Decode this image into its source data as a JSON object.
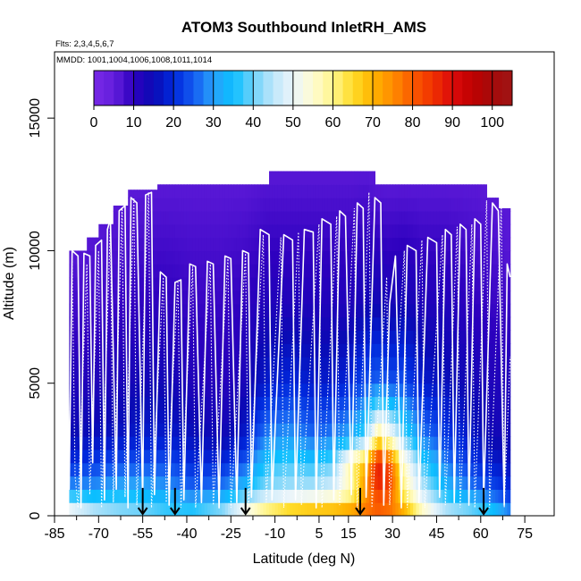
{
  "chart_data": {
    "type": "heatmap",
    "title": "ATOM3 Southbound InletRH_AMS",
    "subtitle_flights": "Flts: 2,3,4,5,6,7",
    "subtitle_dates": "MMDD: 1001,1004,1006,1008,1011,1014",
    "xlabel": "Latitude (deg N)",
    "ylabel": "Altitude (m)",
    "xlim": [
      -85,
      85
    ],
    "ylim": [
      0,
      17500
    ],
    "x_ticks": [
      -85,
      -70,
      -55,
      -40,
      -25,
      -10,
      5,
      15,
      30,
      45,
      60,
      75
    ],
    "x_tick_labels": [
      "-85",
      "-70",
      "-55",
      "-40",
      "-25",
      "-10",
      "5",
      "15",
      "30",
      "45",
      "60",
      "75"
    ],
    "y_ticks": [
      0,
      5000,
      10000,
      15000
    ],
    "y_tick_labels": [
      "0",
      "5000",
      "10000",
      "15000"
    ],
    "colorbar": {
      "range": [
        0,
        105
      ],
      "ticks": [
        0,
        10,
        20,
        30,
        40,
        50,
        60,
        70,
        80,
        90,
        100
      ],
      "tick_labels": [
        "0",
        "10",
        "20",
        "30",
        "40",
        "50",
        "60",
        "70",
        "80",
        "90",
        "100"
      ]
    },
    "arrow_latitudes": [
      -55,
      -44,
      -20,
      19,
      61
    ],
    "cloud_tops": [
      [
        -80,
        10000
      ],
      [
        -74,
        10500
      ],
      [
        -70,
        11000
      ],
      [
        -65,
        11700
      ],
      [
        -60,
        12300
      ],
      [
        -55,
        12300
      ],
      [
        -50,
        12500
      ],
      [
        -30,
        12500
      ],
      [
        -12,
        13000
      ],
      [
        12,
        13000
      ],
      [
        24,
        12500
      ],
      [
        48,
        12500
      ],
      [
        58,
        12500
      ],
      [
        62,
        12000
      ],
      [
        66,
        11600
      ],
      [
        70,
        10000
      ]
    ],
    "rh_profile": [
      {
        "lat": -80,
        "profile": [
          [
            0,
            55
          ],
          [
            500,
            45
          ],
          [
            1000,
            30
          ],
          [
            2000,
            20
          ],
          [
            3000,
            15
          ],
          [
            5000,
            12
          ],
          [
            8000,
            8
          ],
          [
            10000,
            6
          ]
        ]
      },
      {
        "lat": -72,
        "profile": [
          [
            0,
            48
          ],
          [
            500,
            40
          ],
          [
            1000,
            30
          ],
          [
            2000,
            22
          ],
          [
            3000,
            16
          ],
          [
            5000,
            12
          ],
          [
            8000,
            8
          ],
          [
            11000,
            6
          ]
        ]
      },
      {
        "lat": -62,
        "profile": [
          [
            0,
            42
          ],
          [
            500,
            40
          ],
          [
            1000,
            32
          ],
          [
            2000,
            24
          ],
          [
            3000,
            17
          ],
          [
            5000,
            13
          ],
          [
            8000,
            9
          ],
          [
            12000,
            6
          ]
        ]
      },
      {
        "lat": -55,
        "profile": [
          [
            0,
            42
          ],
          [
            500,
            38
          ],
          [
            1000,
            32
          ],
          [
            2000,
            24
          ],
          [
            3000,
            18
          ],
          [
            5000,
            14
          ],
          [
            8000,
            10
          ],
          [
            12300,
            6
          ]
        ]
      },
      {
        "lat": -47,
        "profile": [
          [
            0,
            38
          ],
          [
            500,
            36
          ],
          [
            1000,
            30
          ],
          [
            2000,
            24
          ],
          [
            3000,
            18
          ],
          [
            5000,
            14
          ],
          [
            8000,
            10
          ],
          [
            12500,
            6
          ]
        ]
      },
      {
        "lat": -38,
        "profile": [
          [
            0,
            40
          ],
          [
            500,
            32
          ],
          [
            1000,
            26
          ],
          [
            2000,
            20
          ],
          [
            3000,
            16
          ],
          [
            5000,
            12
          ],
          [
            8000,
            9
          ],
          [
            12500,
            6
          ]
        ]
      },
      {
        "lat": -28,
        "profile": [
          [
            0,
            46
          ],
          [
            500,
            36
          ],
          [
            1000,
            28
          ],
          [
            2000,
            20
          ],
          [
            3000,
            14
          ],
          [
            5000,
            11
          ],
          [
            8000,
            9
          ],
          [
            12500,
            6
          ]
        ]
      },
      {
        "lat": -20,
        "profile": [
          [
            0,
            58
          ],
          [
            500,
            46
          ],
          [
            1000,
            35
          ],
          [
            2000,
            25
          ],
          [
            3000,
            18
          ],
          [
            5000,
            13
          ],
          [
            8000,
            10
          ],
          [
            12500,
            6
          ]
        ]
      },
      {
        "lat": -13,
        "profile": [
          [
            0,
            68
          ],
          [
            500,
            52
          ],
          [
            1000,
            42
          ],
          [
            2000,
            36
          ],
          [
            3000,
            28
          ],
          [
            5000,
            18
          ],
          [
            8000,
            12
          ],
          [
            13000,
            6
          ]
        ]
      },
      {
        "lat": -5,
        "profile": [
          [
            0,
            74
          ],
          [
            500,
            56
          ],
          [
            1000,
            44
          ],
          [
            2000,
            38
          ],
          [
            3000,
            30
          ],
          [
            5000,
            20
          ],
          [
            8000,
            12
          ],
          [
            13000,
            6
          ]
        ]
      },
      {
        "lat": 3,
        "profile": [
          [
            0,
            76
          ],
          [
            500,
            58
          ],
          [
            1000,
            45
          ],
          [
            2000,
            36
          ],
          [
            3000,
            26
          ],
          [
            5000,
            18
          ],
          [
            8000,
            12
          ],
          [
            13000,
            6
          ]
        ]
      },
      {
        "lat": 10,
        "profile": [
          [
            0,
            76
          ],
          [
            500,
            60
          ],
          [
            1000,
            48
          ],
          [
            2000,
            40
          ],
          [
            3000,
            28
          ],
          [
            5000,
            18
          ],
          [
            8000,
            12
          ],
          [
            13000,
            6
          ]
        ]
      },
      {
        "lat": 16,
        "profile": [
          [
            0,
            78
          ],
          [
            500,
            64
          ],
          [
            1000,
            58
          ],
          [
            2000,
            60
          ],
          [
            3000,
            32
          ],
          [
            5000,
            20
          ],
          [
            8000,
            12
          ],
          [
            13000,
            6
          ]
        ]
      },
      {
        "lat": 21,
        "profile": [
          [
            0,
            80
          ],
          [
            500,
            74
          ],
          [
            1000,
            76
          ],
          [
            2000,
            70
          ],
          [
            3000,
            40
          ],
          [
            5000,
            24
          ],
          [
            8000,
            14
          ],
          [
            13000,
            6
          ]
        ]
      },
      {
        "lat": 25,
        "profile": [
          [
            0,
            82
          ],
          [
            500,
            78
          ],
          [
            1000,
            86
          ],
          [
            2000,
            88
          ],
          [
            3000,
            62
          ],
          [
            5000,
            26
          ],
          [
            8000,
            14
          ],
          [
            12500,
            6
          ]
        ]
      },
      {
        "lat": 29,
        "profile": [
          [
            0,
            80
          ],
          [
            500,
            76
          ],
          [
            1000,
            84
          ],
          [
            2000,
            82
          ],
          [
            3000,
            54
          ],
          [
            5000,
            24
          ],
          [
            8000,
            13
          ],
          [
            12500,
            6
          ]
        ]
      },
      {
        "lat": 34,
        "profile": [
          [
            0,
            74
          ],
          [
            500,
            66
          ],
          [
            1000,
            60
          ],
          [
            2000,
            56
          ],
          [
            3000,
            40
          ],
          [
            5000,
            24
          ],
          [
            8000,
            14
          ],
          [
            12500,
            6
          ]
        ]
      },
      {
        "lat": 40,
        "profile": [
          [
            0,
            60
          ],
          [
            500,
            52
          ],
          [
            1000,
            46
          ],
          [
            2000,
            38
          ],
          [
            3000,
            28
          ],
          [
            5000,
            18
          ],
          [
            8000,
            12
          ],
          [
            12500,
            6
          ]
        ]
      },
      {
        "lat": 48,
        "profile": [
          [
            0,
            48
          ],
          [
            500,
            40
          ],
          [
            1000,
            34
          ],
          [
            2000,
            28
          ],
          [
            3000,
            22
          ],
          [
            5000,
            16
          ],
          [
            8000,
            12
          ],
          [
            12500,
            6
          ]
        ]
      },
      {
        "lat": 56,
        "profile": [
          [
            0,
            44
          ],
          [
            500,
            36
          ],
          [
            1000,
            28
          ],
          [
            2000,
            22
          ],
          [
            3000,
            18
          ],
          [
            5000,
            14
          ],
          [
            8000,
            10
          ],
          [
            12500,
            6
          ]
        ]
      },
      {
        "lat": 64,
        "profile": [
          [
            0,
            40
          ],
          [
            500,
            30
          ],
          [
            1000,
            24
          ],
          [
            2000,
            18
          ],
          [
            3000,
            14
          ],
          [
            5000,
            12
          ],
          [
            8000,
            9
          ],
          [
            12000,
            6
          ]
        ]
      },
      {
        "lat": 70,
        "profile": [
          [
            0,
            30
          ],
          [
            500,
            24
          ],
          [
            1000,
            20
          ],
          [
            2000,
            16
          ],
          [
            3000,
            14
          ],
          [
            5000,
            12
          ],
          [
            8000,
            9
          ],
          [
            10000,
            6
          ]
        ]
      }
    ],
    "flight_track_white": [
      [
        -81,
        9800
      ],
      [
        -80,
        1000
      ],
      [
        -79,
        10000
      ],
      [
        -77,
        9800
      ],
      [
        -76,
        300
      ],
      [
        -75,
        9900
      ],
      [
        -73,
        9800
      ],
      [
        -72,
        2000
      ],
      [
        -71,
        10200
      ],
      [
        -69,
        10400
      ],
      [
        -68,
        600
      ],
      [
        -67,
        10800
      ],
      [
        -66,
        11200
      ],
      [
        -64,
        1000
      ],
      [
        -63,
        11500
      ],
      [
        -61,
        11700
      ],
      [
        -60,
        300
      ],
      [
        -59,
        12000
      ],
      [
        -57,
        11800
      ],
      [
        -55,
        600
      ],
      [
        -54,
        12100
      ],
      [
        -52,
        12200
      ],
      [
        -51,
        800
      ],
      [
        -49,
        9200
      ],
      [
        -47,
        9000
      ],
      [
        -46,
        400
      ],
      [
        -44,
        8800
      ],
      [
        -42,
        8900
      ],
      [
        -41,
        600
      ],
      [
        -39,
        9500
      ],
      [
        -37,
        9400
      ],
      [
        -35,
        500
      ],
      [
        -33,
        9600
      ],
      [
        -31,
        9500
      ],
      [
        -29,
        300
      ],
      [
        -27,
        9800
      ],
      [
        -25,
        9700
      ],
      [
        -23,
        500
      ],
      [
        -21,
        10000
      ],
      [
        -19,
        9900
      ],
      [
        -18,
        700
      ],
      [
        -15,
        10800
      ],
      [
        -12,
        10600
      ],
      [
        -11,
        600
      ],
      [
        -7,
        10600
      ],
      [
        -4,
        10400
      ],
      [
        -3,
        600
      ],
      [
        0,
        10800
      ],
      [
        3,
        10700
      ],
      [
        4,
        300
      ],
      [
        6,
        11200
      ],
      [
        9,
        11000
      ],
      [
        10,
        600
      ],
      [
        12,
        11500
      ],
      [
        14,
        11300
      ],
      [
        16,
        800
      ],
      [
        18,
        11800
      ],
      [
        20,
        11600
      ],
      [
        21,
        700
      ],
      [
        24,
        12000
      ],
      [
        26,
        11800
      ],
      [
        27,
        400
      ],
      [
        29,
        8000
      ],
      [
        31,
        9800
      ],
      [
        33,
        300
      ],
      [
        35,
        10200
      ],
      [
        38,
        10000
      ],
      [
        39,
        500
      ],
      [
        42,
        10500
      ],
      [
        45,
        10300
      ],
      [
        46,
        700
      ],
      [
        48,
        10800
      ],
      [
        50,
        10600
      ],
      [
        51,
        500
      ],
      [
        53,
        11000
      ],
      [
        55,
        10800
      ],
      [
        56,
        400
      ],
      [
        58,
        11200
      ],
      [
        60,
        11000
      ],
      [
        61,
        600
      ],
      [
        64,
        11800
      ],
      [
        66,
        11500
      ],
      [
        68,
        400
      ],
      [
        69,
        9500
      ],
      [
        70,
        9000
      ]
    ],
    "flight_track_dotted": [
      [
        -79,
        9600
      ],
      [
        -78,
        1500
      ],
      [
        -77,
        300
      ],
      [
        -74,
        9500
      ],
      [
        -73,
        800
      ],
      [
        -70,
        10000
      ],
      [
        -69,
        300
      ],
      [
        -66,
        11000
      ],
      [
        -65,
        500
      ],
      [
        -62,
        11600
      ],
      [
        -61,
        700
      ],
      [
        -58,
        12000
      ],
      [
        -57,
        400
      ],
      [
        -53,
        12200
      ],
      [
        -52,
        300
      ],
      [
        -48,
        9000
      ],
      [
        -47,
        500
      ],
      [
        -43,
        8800
      ],
      [
        -42,
        300
      ],
      [
        -38,
        9400
      ],
      [
        -37,
        300
      ],
      [
        -32,
        9500
      ],
      [
        -31,
        400
      ],
      [
        -26,
        9700
      ],
      [
        -25,
        300
      ],
      [
        -20,
        9900
      ],
      [
        -19,
        300
      ],
      [
        -14,
        10600
      ],
      [
        -13,
        500
      ],
      [
        -8,
        10500
      ],
      [
        -7,
        300
      ],
      [
        -2,
        10700
      ],
      [
        -1,
        400
      ],
      [
        5,
        11000
      ],
      [
        6,
        300
      ],
      [
        11,
        11300
      ],
      [
        12,
        400
      ],
      [
        17,
        11600
      ],
      [
        18,
        300
      ],
      [
        22,
        12200
      ],
      [
        23,
        300
      ],
      [
        28,
        9000
      ],
      [
        29,
        400
      ],
      [
        34,
        10000
      ],
      [
        35,
        300
      ],
      [
        40,
        10400
      ],
      [
        41,
        300
      ],
      [
        47,
        10600
      ],
      [
        48,
        400
      ],
      [
        52,
        10900
      ],
      [
        53,
        300
      ],
      [
        57,
        11000
      ],
      [
        58,
        300
      ],
      [
        62,
        11900
      ],
      [
        63,
        300
      ],
      [
        67,
        11600
      ],
      [
        68,
        300
      ],
      [
        70,
        6000
      ]
    ]
  }
}
